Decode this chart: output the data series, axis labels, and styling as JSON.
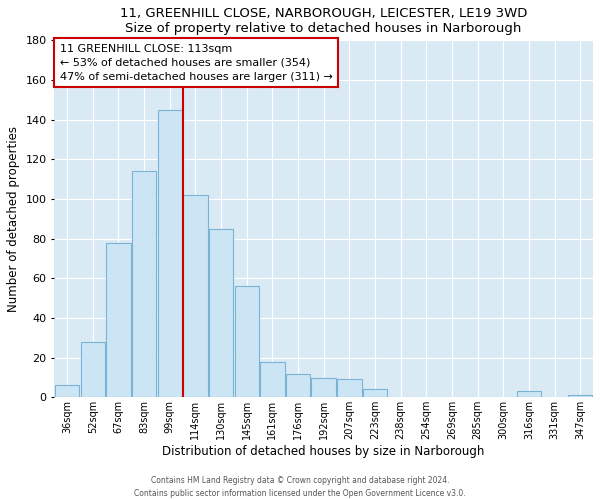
{
  "title": "11, GREENHILL CLOSE, NARBOROUGH, LEICESTER, LE19 3WD",
  "subtitle": "Size of property relative to detached houses in Narborough",
  "xlabel": "Distribution of detached houses by size in Narborough",
  "ylabel": "Number of detached properties",
  "bar_labels": [
    "36sqm",
    "52sqm",
    "67sqm",
    "83sqm",
    "99sqm",
    "114sqm",
    "130sqm",
    "145sqm",
    "161sqm",
    "176sqm",
    "192sqm",
    "207sqm",
    "223sqm",
    "238sqm",
    "254sqm",
    "269sqm",
    "285sqm",
    "300sqm",
    "316sqm",
    "331sqm",
    "347sqm"
  ],
  "bar_values": [
    6,
    28,
    78,
    114,
    145,
    102,
    85,
    56,
    18,
    12,
    10,
    9,
    4,
    0,
    0,
    0,
    0,
    0,
    3,
    0,
    1
  ],
  "bar_color": "#cce5f5",
  "bar_edge_color": "#7ab3d4",
  "highlight_bar_index": 4,
  "highlight_bar_color": "#cce5f5",
  "highlight_bar_edge_color": "#cc0000",
  "vline_color": "#cc0000",
  "ylim": [
    0,
    180
  ],
  "yticks": [
    0,
    20,
    40,
    60,
    80,
    100,
    120,
    140,
    160,
    180
  ],
  "annotation_title": "11 GREENHILL CLOSE: 113sqm",
  "annotation_line1": "← 53% of detached houses are smaller (354)",
  "annotation_line2": "47% of semi-detached houses are larger (311) →",
  "annotation_box_color": "#ffffff",
  "annotation_box_edge_color": "#cc0000",
  "footer1": "Contains HM Land Registry data © Crown copyright and database right 2024.",
  "footer2": "Contains public sector information licensed under the Open Government Licence v3.0.",
  "background_color": "#ffffff",
  "grid_color": "#daeaf5"
}
